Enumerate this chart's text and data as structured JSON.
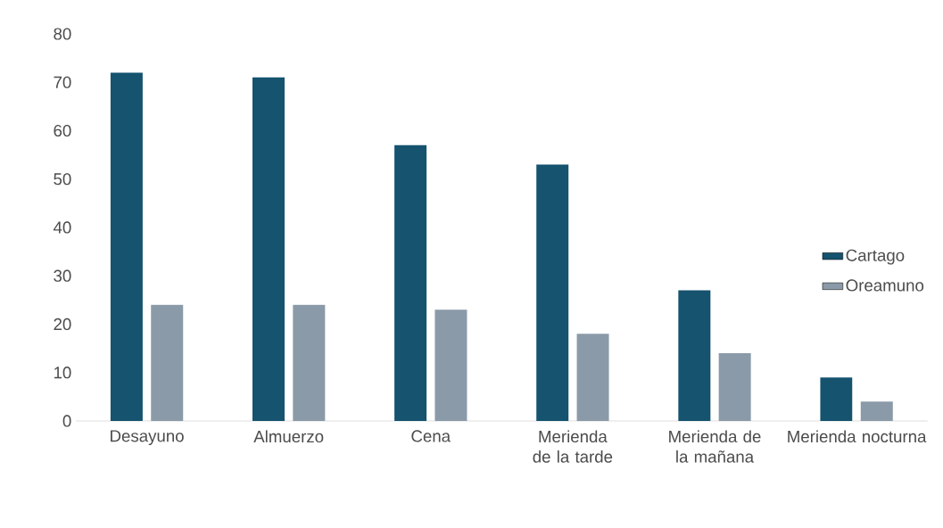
{
  "chart_data": {
    "type": "bar",
    "categories": [
      "Desayuno",
      "Almuerzo",
      "Cena",
      "Merienda de la tarde",
      "Merienda de la mañana",
      "Merienda nocturna"
    ],
    "series": [
      {
        "name": "Cartago",
        "color": "#15536f",
        "values": [
          72,
          71,
          57,
          53,
          27,
          9
        ]
      },
      {
        "name": "Oreamuno",
        "color": "#8b9aa8",
        "values": [
          24,
          24,
          23,
          18,
          14,
          4
        ]
      }
    ],
    "ylim": [
      0,
      80
    ],
    "yticks": [
      0,
      10,
      20,
      30,
      40,
      50,
      60,
      70,
      80
    ],
    "grid": false,
    "legend": "right"
  }
}
